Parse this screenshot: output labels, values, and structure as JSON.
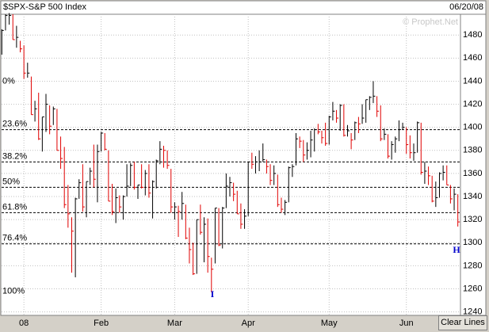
{
  "chart_data": {
    "type": "hlc",
    "title": "$SPX-S&P 500 Index",
    "date": "06/20/08",
    "watermark": "© Prophet.Net",
    "button": "Clear Lines",
    "annotations": [
      "I",
      "H"
    ],
    "up_color": "#000000",
    "down_color": "#e00000",
    "categories": [
      null,
      null,
      null,
      null,
      null,
      null,
      "08",
      null,
      null,
      null,
      null,
      null,
      null,
      null,
      null,
      null,
      null,
      null,
      null,
      null,
      null,
      null,
      null,
      null,
      null,
      null,
      null,
      "Feb",
      null,
      null,
      null,
      null,
      null,
      null,
      null,
      null,
      null,
      null,
      null,
      null,
      null,
      null,
      null,
      null,
      null,
      null,
      null,
      "Mar",
      null,
      null,
      null,
      null,
      null,
      null,
      null,
      null,
      null,
      null,
      null,
      null,
      null,
      null,
      null,
      null,
      null,
      null,
      null,
      "Apr",
      null,
      null,
      null,
      null,
      null,
      null,
      null,
      null,
      null,
      null,
      null,
      null,
      null,
      null,
      null,
      null,
      null,
      null,
      null,
      null,
      null,
      "May",
      null,
      null,
      null,
      null,
      null,
      null,
      null,
      null,
      null,
      null,
      null,
      null,
      null,
      null,
      null,
      null,
      null,
      null,
      null,
      null,
      "Jun",
      null,
      null,
      null,
      null,
      null,
      null,
      null,
      null,
      null,
      null,
      null,
      null,
      null,
      null
    ],
    "high": [
      1485,
      1498,
      1499,
      1498,
      1488,
      1475,
      1471,
      1456,
      1444,
      1423,
      1430,
      1409,
      1429,
      1419,
      1418,
      1416,
      1392,
      1383,
      1350,
      1322,
      1339,
      1355,
      1368,
      1353,
      1365,
      1385,
      1385,
      1396,
      1395,
      1380,
      1351,
      1347,
      1341,
      1341,
      1368,
      1369,
      1370,
      1350,
      1368,
      1363,
      1368,
      1354,
      1372,
      1388,
      1384,
      1380,
      1364,
      1335,
      1332,
      1344,
      1333,
      1313,
      1300,
      1320,
      1333,
      1322,
      1321,
      1287,
      1330,
      1330,
      1331,
      1360,
      1357,
      1352,
      1345,
      1334,
      1329,
      1370,
      1378,
      1375,
      1380,
      1386,
      1372,
      1368,
      1367,
      1359,
      1339,
      1337,
      1366,
      1368,
      1395,
      1392,
      1389,
      1387,
      1397,
      1399,
      1403,
      1397,
      1404,
      1410,
      1422,
      1415,
      1420,
      1420,
      1402,
      1395,
      1405,
      1409,
      1420,
      1424,
      1427,
      1440,
      1427,
      1419,
      1399,
      1394,
      1388,
      1392,
      1406,
      1404,
      1400,
      1393,
      1386,
      1405,
      1404,
      1370,
      1366,
      1358,
      1353,
      1361,
      1367,
      1367,
      1350,
      1347,
      1342
    ],
    "low": [
      1463,
      1484,
      1489,
      1476,
      1469,
      1465,
      1442,
      1443,
      1411,
      1405,
      1389,
      1379,
      1396,
      1394,
      1402,
      1380,
      1364,
      1330,
      1313,
      1274,
      1270,
      1338,
      1327,
      1322,
      1350,
      1348,
      1335,
      1379,
      1380,
      1336,
      1324,
      1317,
      1326,
      1320,
      1340,
      1349,
      1346,
      1338,
      1347,
      1341,
      1339,
      1321,
      1347,
      1368,
      1365,
      1364,
      1326,
      1320,
      1305,
      1320,
      1303,
      1282,
      1272,
      1273,
      1307,
      1283,
      1274,
      1257,
      1282,
      1297,
      1295,
      1330,
      1340,
      1336,
      1325,
      1312,
      1312,
      1323,
      1364,
      1360,
      1362,
      1370,
      1360,
      1350,
      1350,
      1331,
      1326,
      1324,
      1335,
      1357,
      1367,
      1382,
      1370,
      1372,
      1374,
      1379,
      1394,
      1386,
      1384,
      1385,
      1406,
      1404,
      1397,
      1392,
      1392,
      1381,
      1389,
      1395,
      1403,
      1404,
      1415,
      1421,
      1409,
      1388,
      1389,
      1373,
      1372,
      1378,
      1388,
      1398,
      1377,
      1373,
      1371,
      1378,
      1359,
      1351,
      1350,
      1335,
      1331,
      1339,
      1354,
      1350,
      1334,
      1328,
      1314
    ],
    "close": [
      1484,
      1497,
      1497,
      1476,
      1478,
      1468,
      1447,
      1447,
      1411,
      1416,
      1390,
      1409,
      1420,
      1401,
      1416,
      1380,
      1373,
      1333,
      1325,
      1310,
      1338,
      1352,
      1331,
      1353,
      1362,
      1355,
      1379,
      1395,
      1381,
      1336,
      1327,
      1339,
      1331,
      1340,
      1349,
      1367,
      1348,
      1350,
      1348,
      1360,
      1343,
      1353,
      1371,
      1381,
      1380,
      1367,
      1331,
      1331,
      1327,
      1334,
      1304,
      1294,
      1273,
      1320,
      1309,
      1316,
      1288,
      1277,
      1330,
      1298,
      1330,
      1349,
      1352,
      1342,
      1325,
      1316,
      1323,
      1370,
      1368,
      1370,
      1370,
      1372,
      1366,
      1354,
      1360,
      1333,
      1329,
      1335,
      1365,
      1366,
      1390,
      1388,
      1376,
      1380,
      1389,
      1398,
      1396,
      1391,
      1386,
      1409,
      1414,
      1408,
      1419,
      1393,
      1397,
      1389,
      1404,
      1403,
      1408,
      1424,
      1426,
      1427,
      1414,
      1390,
      1394,
      1375,
      1385,
      1390,
      1398,
      1400,
      1385,
      1378,
      1378,
      1404,
      1361,
      1362,
      1358,
      1336,
      1339,
      1360,
      1361,
      1350,
      1338,
      1342,
      1318
    ],
    "ylim": [
      1237,
      1498
    ],
    "yticks": [
      1240,
      1260,
      1280,
      1300,
      1320,
      1340,
      1360,
      1380,
      1400,
      1420,
      1440,
      1460,
      1480
    ],
    "grid": true,
    "fib_levels": [
      {
        "value": 1440,
        "label": "0%",
        "line": false
      },
      {
        "value": 1398,
        "label": "23.6%",
        "line": true
      },
      {
        "value": 1370,
        "label": "38.2%",
        "line": true
      },
      {
        "value": 1348,
        "label": "50%",
        "line": true
      },
      {
        "value": 1326,
        "label": "61.8%",
        "line": true
      },
      {
        "value": 1299,
        "label": "76.4%",
        "line": true
      },
      {
        "value": 1258,
        "label": "100%",
        "line": false
      }
    ]
  }
}
